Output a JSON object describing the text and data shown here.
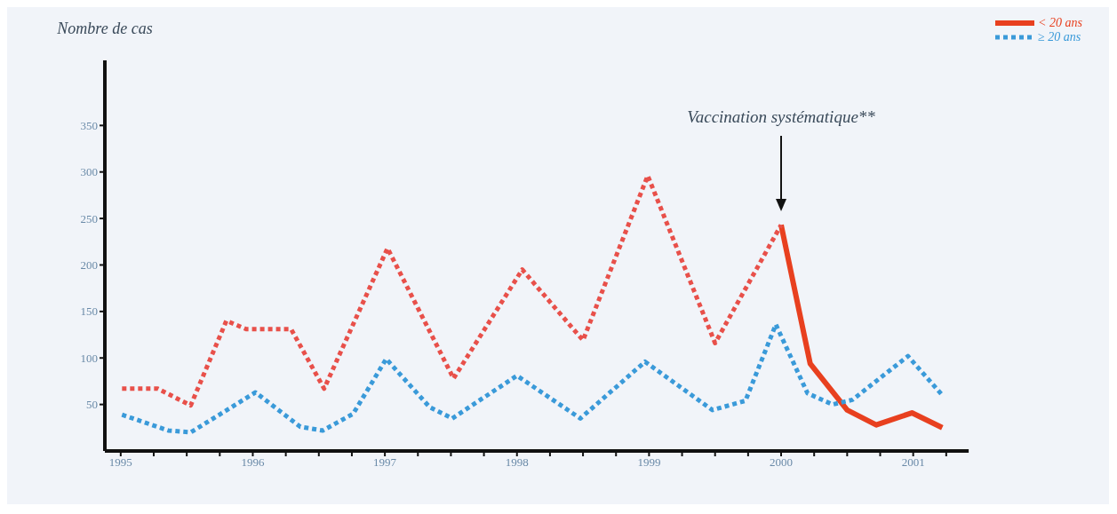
{
  "chart_data": {
    "type": "line",
    "ylabel": "Nombre de cas",
    "xlim": [
      1994.88,
      2001.42
    ],
    "xticks": [
      1995,
      {
        "value": 1995.25,
        "label": null
      },
      {
        "value": 1995.5,
        "label": null
      },
      {
        "value": 1995.75,
        "label": null
      },
      1996,
      {
        "value": 1996.25,
        "label": null
      },
      {
        "value": 1996.5,
        "label": null
      },
      {
        "value": 1996.75,
        "label": null
      },
      1997,
      {
        "value": 1997.25,
        "label": null
      },
      {
        "value": 1997.5,
        "label": null
      },
      {
        "value": 1997.75,
        "label": null
      },
      1998,
      {
        "value": 1998.25,
        "label": null
      },
      {
        "value": 1998.5,
        "label": null
      },
      {
        "value": 1998.75,
        "label": null
      },
      1999,
      {
        "value": 1999.25,
        "label": null
      },
      {
        "value": 1999.5,
        "label": null
      },
      {
        "value": 1999.75,
        "label": null
      },
      2000,
      {
        "value": 2000.25,
        "label": null
      },
      {
        "value": 2000.5,
        "label": null
      },
      {
        "value": 2000.75,
        "label": null
      },
      2001,
      {
        "value": 2001.25,
        "label": null
      }
    ],
    "ylim": [
      0,
      420
    ],
    "yticks": [
      50,
      100,
      150,
      200,
      250,
      300,
      350
    ],
    "series": [
      {
        "name": "< 20 ans",
        "color": "#e8401f",
        "line_style": "solid",
        "x": [
          2000.0,
          2000.22,
          2000.5,
          2000.72,
          2000.99,
          2001.22
        ],
        "values": [
          243,
          94,
          44,
          28,
          41,
          25
        ]
      },
      {
        "color": "#e8504a",
        "line_style": "dotted",
        "x": [
          1995.01,
          1995.28,
          1995.53,
          1995.8,
          1995.95,
          1996.29,
          1996.54,
          1997.02,
          1997.52,
          1998.04,
          1998.5,
          1998.99,
          1999.5,
          2000.0
        ],
        "values": [
          67,
          67,
          49,
          140,
          131,
          131,
          67,
          218,
          78,
          195,
          119,
          296,
          116,
          243
        ]
      },
      {
        "name": "≥ 20 ans",
        "color": "#3a9ad9",
        "line_style": "dotted",
        "x": [
          1995.01,
          1995.36,
          1995.53,
          1996.02,
          1996.36,
          1996.53,
          1996.76,
          1997.01,
          1997.34,
          1997.51,
          1998.0,
          1998.48,
          1998.97,
          1999.48,
          1999.73,
          1999.96,
          2000.2,
          2000.39,
          2000.54,
          2000.96,
          2001.22
        ],
        "values": [
          39,
          22,
          20,
          63,
          26,
          22,
          40,
          99,
          47,
          35,
          81,
          35,
          96,
          44,
          54,
          136,
          62,
          50,
          55,
          102,
          60
        ]
      }
    ],
    "ref_lines": [
      {
        "axis": "x",
        "value": 2000,
        "label": "Vaccination systématique**",
        "color": "#111111"
      }
    ],
    "legend": "top right",
    "marker": "none",
    "grid": false
  }
}
